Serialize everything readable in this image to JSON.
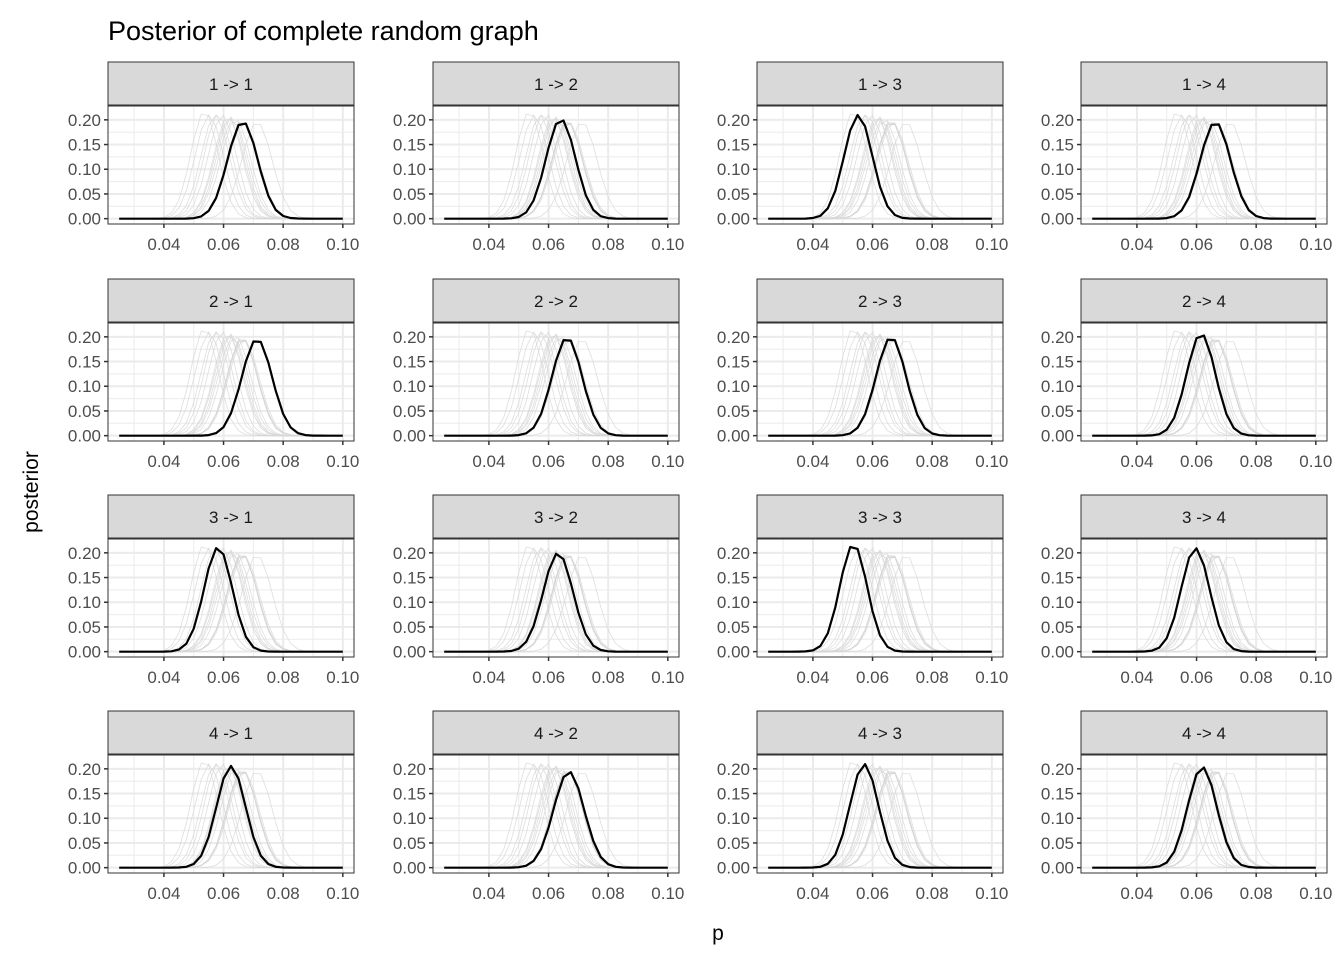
{
  "chart_data": {
    "type": "line",
    "title": "Posterior of complete random graph",
    "xlabel": "p",
    "ylabel": "posterior",
    "xlim": [
      0.02125,
      0.10375
    ],
    "ylim": [
      -0.0108,
      0.228
    ],
    "x_range": [
      0.025,
      0.1
    ],
    "x_step": 0.0025,
    "x_ticks": [
      0.04,
      0.06,
      0.08,
      0.1
    ],
    "x_tick_labels": [
      "0.04",
      "0.06",
      "0.08",
      "0.10"
    ],
    "y_ticks": [
      0,
      0.05,
      0.1,
      0.15,
      0.2
    ],
    "y_tick_labels": [
      "0.00",
      "0.05",
      "0.10",
      "0.15",
      "0.20"
    ],
    "grid": true,
    "layout": "4x4 facets",
    "background_series_note": "grey lines = all 16 facet curves overlaid",
    "colors": {
      "highlight": "#000000",
      "background": "#d6d6d6",
      "strip": "#d9d9d9",
      "grid": "#ebebeb"
    },
    "facets": [
      {
        "label": "1 -> 1",
        "peak_p": 0.0664,
        "peak": 0.197
      },
      {
        "label": "1 -> 2",
        "peak_p": 0.0641,
        "peak": 0.202
      },
      {
        "label": "1 -> 3",
        "peak_p": 0.0552,
        "peak": 0.21
      },
      {
        "label": "1 -> 4",
        "peak_p": 0.0663,
        "peak": 0.196
      },
      {
        "label": "2 -> 1",
        "peak_p": 0.0712,
        "peak": 0.196
      },
      {
        "label": "2 -> 2",
        "peak_p": 0.0662,
        "peak": 0.199
      },
      {
        "label": "2 -> 3",
        "peak_p": 0.0662,
        "peak": 0.2
      },
      {
        "label": "2 -> 4",
        "peak_p": 0.0615,
        "peak": 0.207
      },
      {
        "label": "3 -> 1",
        "peak_p": 0.0582,
        "peak": 0.212
      },
      {
        "label": "3 -> 2",
        "peak_p": 0.0632,
        "peak": 0.2
      },
      {
        "label": "3 -> 3",
        "peak_p": 0.0536,
        "peak": 0.218
      },
      {
        "label": "3 -> 4",
        "peak_p": 0.0596,
        "peak": 0.21
      },
      {
        "label": "4 -> 1",
        "peak_p": 0.0625,
        "peak": 0.206
      },
      {
        "label": "4 -> 2",
        "peak_p": 0.0668,
        "peak": 0.195
      },
      {
        "label": "4 -> 3",
        "peak_p": 0.0572,
        "peak": 0.21
      },
      {
        "label": "4 -> 4",
        "peak_p": 0.0619,
        "peak": 0.204
      }
    ]
  }
}
